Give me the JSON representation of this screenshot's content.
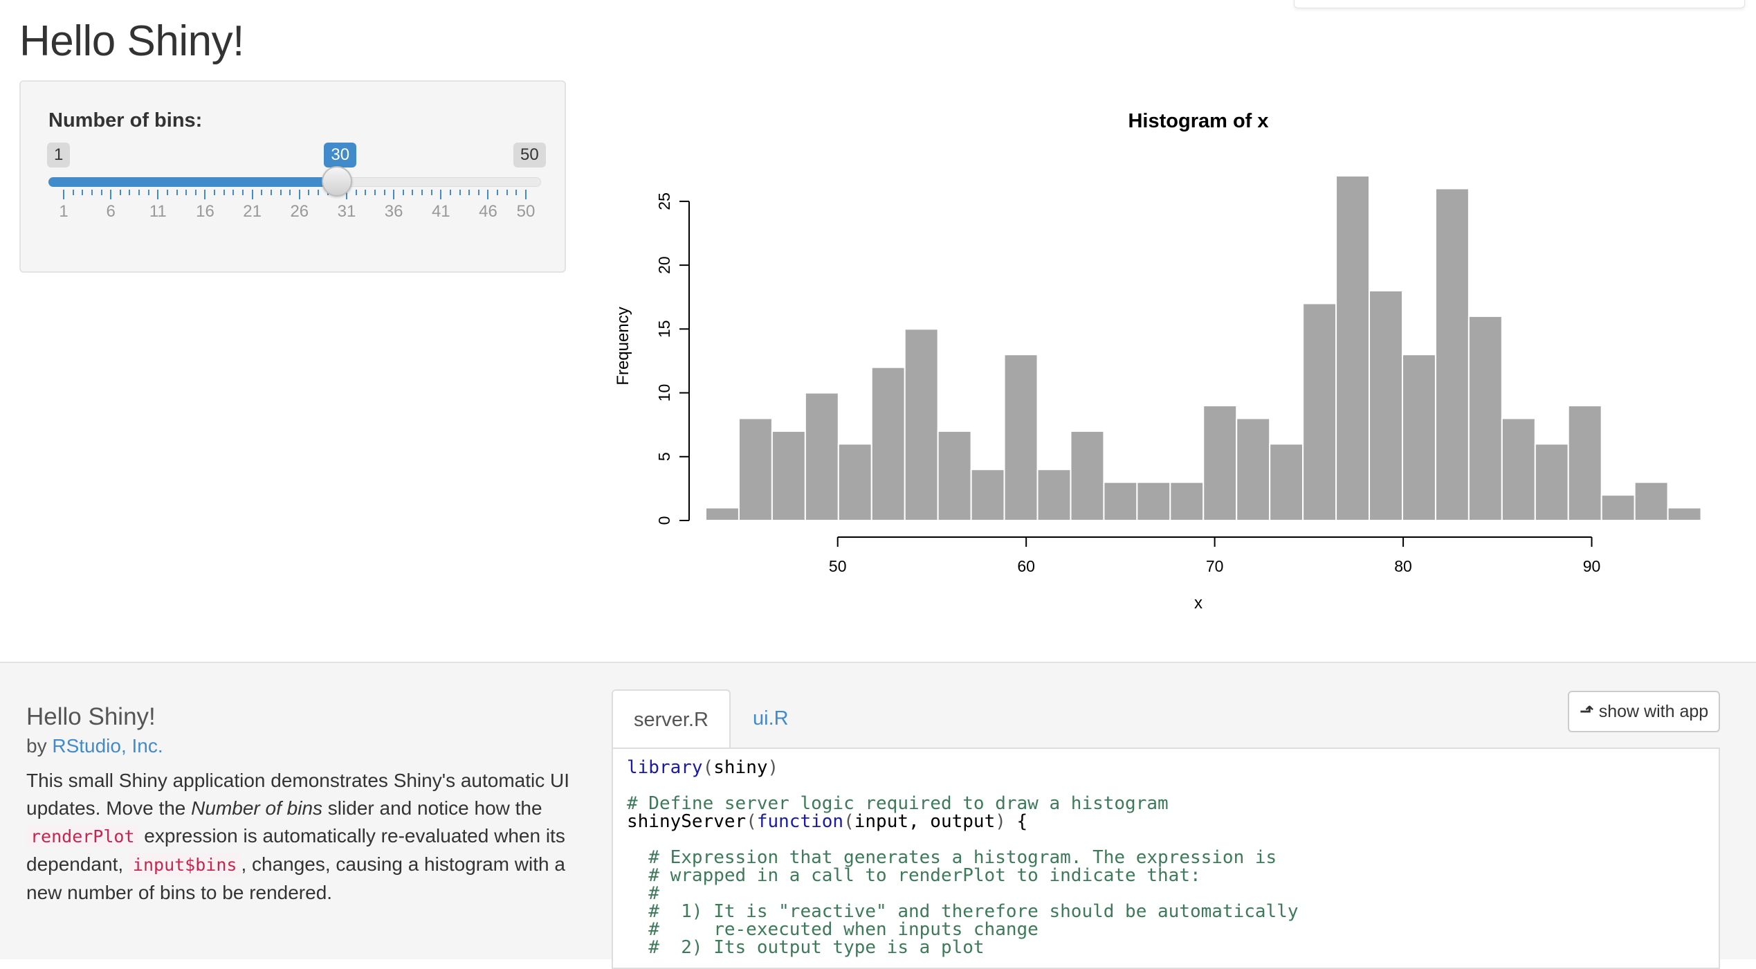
{
  "header": {
    "title": "Hello Shiny!"
  },
  "sidebar": {
    "slider": {
      "label": "Number of bins:",
      "min_label": "1",
      "max_label": "50",
      "value_label": "30",
      "min": 1,
      "max": 50,
      "value": 30,
      "tick_labels": [
        "1",
        "6",
        "11",
        "16",
        "21",
        "26",
        "31",
        "36",
        "41",
        "46",
        "50"
      ]
    }
  },
  "chart_data": {
    "type": "bar",
    "title": "Histogram of x",
    "xlabel": "x",
    "ylabel": "Frequency",
    "bin_width": 1.76,
    "bin_start": 43.0,
    "values": [
      1,
      8,
      7,
      10,
      6,
      12,
      15,
      7,
      4,
      13,
      4,
      7,
      3,
      3,
      3,
      9,
      8,
      6,
      17,
      27,
      18,
      13,
      26,
      16,
      8,
      6,
      9,
      2,
      3,
      1
    ],
    "xlim": [
      43,
      96
    ],
    "ylim": [
      0,
      27
    ],
    "x_ticks": [
      50,
      60,
      70,
      80,
      90
    ],
    "x_tick_labels": [
      "50",
      "60",
      "70",
      "80",
      "90"
    ],
    "y_ticks": [
      0,
      5,
      10,
      15,
      20,
      25
    ],
    "y_tick_labels": [
      "0",
      "5",
      "10",
      "15",
      "20",
      "25"
    ],
    "bar_color": "#a6a6a6"
  },
  "about": {
    "title": "Hello Shiny!",
    "by_prefix": "by",
    "author": "RStudio, Inc.",
    "desc_1": "This small Shiny application demonstrates Shiny's automatic UI updates. Move the ",
    "desc_em": "Number of bins",
    "desc_2": " slider and notice how the ",
    "code_1": "renderPlot",
    "desc_3": " expression is automatically re-evaluated when its dependant, ",
    "code_2": "input$bins",
    "desc_4": ", changes, causing a histogram with a new number of bins to be rendered."
  },
  "tabs": [
    {
      "label": "server.R"
    },
    {
      "label": "ui.R"
    }
  ],
  "show_button": {
    "label": "show with app",
    "icon": "level-up-icon"
  },
  "code": {
    "l1_fn": "library",
    "l1_arg": "shiny",
    "l2": "# Define server logic required to draw a histogram",
    "l3_a": "shinyServer",
    "l3_kw": "function",
    "l3_b": "input, output",
    "l4": "  # Expression that generates a histogram. The expression is",
    "l5": "  # wrapped in a call to renderPlot to indicate that:",
    "l6": "  #",
    "l7": "  #  1) It is \"reactive\" and therefore should be automatically",
    "l8": "  #     re-executed when inputs change",
    "l9": "  #  2) Its output type is a plot"
  },
  "colors": {
    "accent": "#428bca",
    "code_keyword": "#1a1aa6",
    "code_comment": "#3d7a5a"
  }
}
